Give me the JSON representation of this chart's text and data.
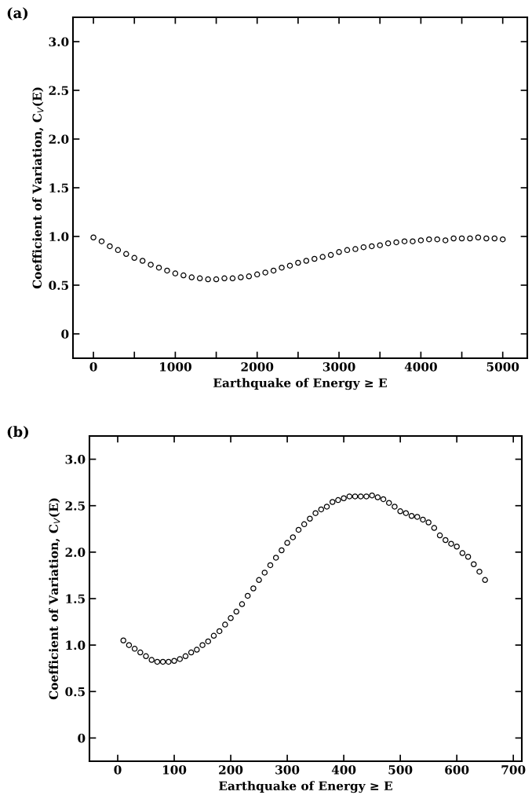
{
  "chart_data": [
    {
      "type": "scatter",
      "title": "(a)",
      "xlabel": "Earthquake of Energy ≥ E",
      "ylabel": "Coefficient of Variation, C$_{V}$(E)",
      "marker": "circle",
      "grid": false,
      "legend": false,
      "xlim": [
        -250,
        5300
      ],
      "xticks": [
        0,
        {
          "value": 500,
          "label": null
        },
        1000,
        {
          "value": 1500,
          "label": null
        },
        2000,
        {
          "value": 2500,
          "label": null
        },
        3000,
        {
          "value": 3500,
          "label": null
        },
        4000,
        {
          "value": 4500,
          "label": null
        },
        5000
      ],
      "ylim": [
        -0.25,
        3.25
      ],
      "yticks": [
        {
          "value": 0,
          "label": "0"
        },
        {
          "value": 0.5,
          "label": "0.5"
        },
        {
          "value": 1.0,
          "label": "1.0"
        },
        {
          "value": 1.5,
          "label": "1.5"
        },
        {
          "value": 2.0,
          "label": "2.0"
        },
        {
          "value": 2.5,
          "label": "2.5"
        },
        {
          "value": 3.0,
          "label": "3.0"
        }
      ],
      "x": [
        0,
        100,
        200,
        300,
        400,
        500,
        600,
        700,
        800,
        900,
        1000,
        1100,
        1200,
        1300,
        1400,
        1500,
        1600,
        1700,
        1800,
        1900,
        2000,
        2100,
        2200,
        2300,
        2400,
        2500,
        2600,
        2700,
        2800,
        2900,
        3000,
        3100,
        3200,
        3300,
        3400,
        3500,
        3600,
        3700,
        3800,
        3900,
        4000,
        4100,
        4200,
        4300,
        4400,
        4500,
        4600,
        4700,
        4800,
        4900,
        5000
      ],
      "series": [
        {
          "color": "#000000",
          "values": [
            0.99,
            0.95,
            0.9,
            0.86,
            0.82,
            0.78,
            0.75,
            0.71,
            0.68,
            0.65,
            0.62,
            0.6,
            0.58,
            0.57,
            0.56,
            0.56,
            0.57,
            0.57,
            0.58,
            0.59,
            0.61,
            0.63,
            0.65,
            0.68,
            0.7,
            0.73,
            0.75,
            0.77,
            0.79,
            0.81,
            0.84,
            0.86,
            0.87,
            0.89,
            0.9,
            0.91,
            0.93,
            0.94,
            0.95,
            0.95,
            0.96,
            0.97,
            0.97,
            0.96,
            0.98,
            0.98,
            0.98,
            0.99,
            0.98,
            0.98,
            0.97
          ]
        }
      ]
    },
    {
      "type": "scatter",
      "title": "(b)",
      "xlabel": "Earthquake of Energy ≥ E",
      "ylabel": "Coefficient of Variation, C$_{V}$(E)",
      "marker": "circle",
      "grid": false,
      "legend": false,
      "xlim": [
        -50,
        715
      ],
      "xticks": [
        0,
        100,
        200,
        300,
        400,
        500,
        600,
        700
      ],
      "ylim": [
        -0.25,
        3.25
      ],
      "yticks": [
        {
          "value": 0,
          "label": "0"
        },
        {
          "value": 0.5,
          "label": "0.5"
        },
        {
          "value": 1.0,
          "label": "1.0"
        },
        {
          "value": 1.5,
          "label": "1.5"
        },
        {
          "value": 2.0,
          "label": "2.0"
        },
        {
          "value": 2.5,
          "label": "2.5"
        },
        {
          "value": 3.0,
          "label": "3.0"
        }
      ],
      "x": [
        10,
        20,
        30,
        40,
        50,
        60,
        70,
        80,
        90,
        100,
        110,
        120,
        130,
        140,
        150,
        160,
        170,
        180,
        190,
        200,
        210,
        220,
        230,
        240,
        250,
        260,
        270,
        280,
        290,
        300,
        310,
        320,
        330,
        340,
        350,
        360,
        370,
        380,
        390,
        400,
        410,
        420,
        430,
        440,
        450,
        460,
        470,
        480,
        490,
        500,
        510,
        520,
        530,
        540,
        550,
        560,
        570,
        580,
        590,
        600,
        610,
        620,
        630,
        640,
        650
      ],
      "series": [
        {
          "color": "#000000",
          "values": [
            1.05,
            1.0,
            0.96,
            0.92,
            0.88,
            0.84,
            0.82,
            0.82,
            0.82,
            0.83,
            0.85,
            0.88,
            0.92,
            0.95,
            1.0,
            1.04,
            1.1,
            1.15,
            1.22,
            1.29,
            1.36,
            1.44,
            1.53,
            1.61,
            1.7,
            1.78,
            1.86,
            1.94,
            2.02,
            2.1,
            2.16,
            2.24,
            2.3,
            2.36,
            2.42,
            2.46,
            2.49,
            2.54,
            2.56,
            2.58,
            2.6,
            2.6,
            2.6,
            2.6,
            2.61,
            2.59,
            2.57,
            2.53,
            2.49,
            2.44,
            2.42,
            2.39,
            2.38,
            2.35,
            2.32,
            2.26,
            2.18,
            2.13,
            2.09,
            2.06,
            1.99,
            1.95,
            1.87,
            1.79,
            1.7
          ]
        }
      ]
    }
  ]
}
